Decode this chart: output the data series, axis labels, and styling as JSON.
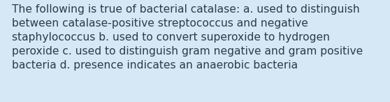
{
  "background_color": "#d6e8f5",
  "lines": [
    "The following is true of bacterial catalase: a. used to distinguish",
    "between catalase-positive streptococcus and negative",
    "staphylococcus b. used to convert superoxide to hydrogen",
    "peroxide c. used to distinguish gram negative and gram positive",
    "bacteria d. presence indicates an anaerobic bacteria"
  ],
  "text_color": "#2d3a4a",
  "font_size": 11.2,
  "fig_width": 5.58,
  "fig_height": 1.46,
  "dpi": 100
}
